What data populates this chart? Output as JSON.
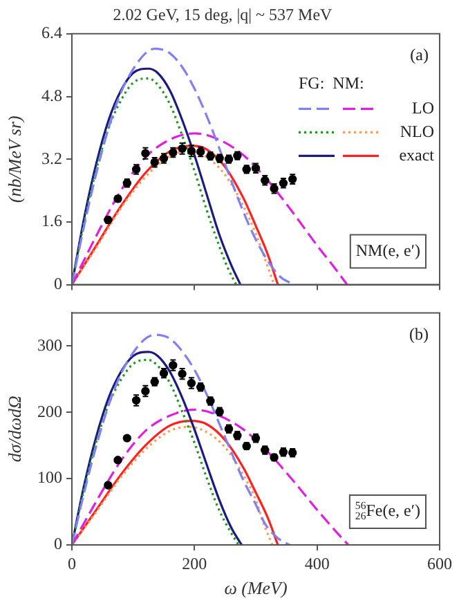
{
  "chart_data": [
    {
      "type": "line",
      "title": "2.02 GeV, 15 deg, |q| ~ 537 MeV",
      "ylabel": "(nb/MeV sr)",
      "legend_title": "FG:  NM:",
      "annotations": [
        "(a)",
        "NM(e, e′)"
      ],
      "xlim": [
        0,
        600
      ],
      "xticks": [
        0,
        200,
        400,
        600
      ],
      "ylim": [
        0,
        6.4
      ],
      "yticks": [
        0,
        1.6,
        3.2,
        4.8,
        6.4
      ],
      "tick_labels": "y",
      "grid": false,
      "legend": "right",
      "series": [
        {
          "color": "#8080f0",
          "line_style": "dashed",
          "x": [
            0,
            20,
            40,
            60,
            80,
            100,
            120,
            136,
            160,
            180,
            200,
            220,
            240,
            260,
            280,
            300,
            320,
            340,
            362
          ],
          "values": [
            0,
            1.5,
            2.85,
            4.0,
            4.9,
            5.5,
            5.9,
            6.02,
            5.9,
            5.55,
            5.0,
            4.3,
            3.5,
            2.65,
            1.85,
            1.15,
            0.6,
            0.2,
            0
          ]
        },
        {
          "color": "#1a9a1a",
          "line_style": "dotted",
          "x": [
            0,
            20,
            40,
            60,
            80,
            100,
            125,
            140,
            160,
            180,
            200,
            220,
            240,
            255,
            268
          ],
          "values": [
            0,
            1.6,
            2.95,
            4.0,
            4.7,
            5.15,
            5.26,
            5.1,
            4.6,
            3.8,
            2.9,
            1.9,
            1.0,
            0.4,
            0
          ]
        },
        {
          "color": "#1a1a80",
          "line_style": "solid",
          "x": [
            0,
            20,
            40,
            60,
            80,
            100,
            125,
            140,
            160,
            180,
            200,
            220,
            240,
            260,
            275
          ],
          "values": [
            0,
            1.7,
            3.1,
            4.2,
            4.95,
            5.4,
            5.51,
            5.4,
            4.95,
            4.2,
            3.3,
            2.3,
            1.3,
            0.5,
            0
          ]
        },
        {
          "name": "LO",
          "color": "#e020e0",
          "line_style": "dashed",
          "x": [
            0,
            40,
            80,
            120,
            160,
            200,
            240,
            280,
            320,
            360,
            400,
            430,
            449
          ],
          "values": [
            0,
            1.25,
            2.4,
            3.25,
            3.7,
            3.86,
            3.7,
            3.3,
            2.65,
            1.85,
            1.0,
            0.4,
            0
          ]
        },
        {
          "name": "NLO",
          "color": "#ff9a50",
          "line_style": "dotted",
          "x": [
            0,
            40,
            80,
            120,
            160,
            190,
            220,
            250,
            280,
            300,
            315,
            330
          ],
          "values": [
            0,
            0.95,
            1.95,
            2.75,
            3.28,
            3.4,
            3.25,
            2.8,
            2.0,
            1.3,
            0.65,
            0
          ]
        },
        {
          "name": "exact",
          "color": "#ff2020",
          "line_style": "solid",
          "x": [
            0,
            40,
            80,
            120,
            160,
            196,
            220,
            250,
            280,
            300,
            320,
            336
          ],
          "values": [
            0,
            1.0,
            2.0,
            2.85,
            3.4,
            3.54,
            3.45,
            3.0,
            2.2,
            1.5,
            0.75,
            0
          ]
        },
        {
          "type": "scatter",
          "marker": "circle",
          "color": "#000000",
          "x": [
            59,
            75,
            90,
            105,
            120,
            135,
            150,
            165,
            180,
            195,
            210,
            226,
            241,
            256,
            270,
            285,
            300,
            315,
            330,
            345,
            360
          ],
          "values": [
            1.65,
            2.19,
            2.59,
            2.94,
            3.35,
            3.12,
            3.22,
            3.37,
            3.47,
            3.41,
            3.39,
            3.28,
            3.22,
            3.2,
            3.29,
            2.94,
            2.97,
            2.66,
            2.45,
            2.59,
            2.69
          ],
          "errors": [
            0.08,
            0.08,
            0.1,
            0.12,
            0.14,
            0.12,
            0.12,
            0.12,
            0.14,
            0.14,
            0.12,
            0.1,
            0.1,
            0.1,
            0.1,
            0.1,
            0.12,
            0.12,
            0.12,
            0.12,
            0.12
          ]
        }
      ]
    },
    {
      "type": "line",
      "ylabel": "dσ/dωdΩ",
      "xlabel": "ω (MeV)",
      "annotations": [
        "(b)",
        "$^{56}$$_{26}$Fe(e, e′)"
      ],
      "xlim": [
        0,
        600
      ],
      "xticks": [
        0,
        200,
        400,
        600
      ],
      "ylim": [
        0,
        350
      ],
      "yticks": [
        0,
        100,
        200,
        300
      ],
      "grid": false,
      "series": [
        {
          "color": "#8080f0",
          "line_style": "dashed",
          "x": [
            0,
            20,
            40,
            60,
            80,
            100,
            120,
            136,
            160,
            180,
            200,
            220,
            240,
            260,
            280,
            300,
            315,
            335,
            355
          ],
          "values": [
            0,
            79,
            150,
            211,
            258,
            290,
            311,
            317,
            311,
            292,
            264,
            227,
            184,
            140,
            97,
            61,
            32,
            11,
            0
          ]
        },
        {
          "color": "#1a9a1a",
          "line_style": "dotted",
          "x": [
            0,
            20,
            40,
            60,
            80,
            100,
            125,
            140,
            160,
            180,
            200,
            220,
            240,
            258,
            272
          ],
          "values": [
            0,
            85,
            156,
            212,
            249,
            273,
            279,
            270,
            244,
            201,
            154,
            101,
            53,
            21,
            0
          ]
        },
        {
          "color": "#1a1a80",
          "line_style": "solid",
          "x": [
            0,
            20,
            40,
            60,
            80,
            100,
            125,
            140,
            160,
            180,
            200,
            220,
            240,
            260,
            277
          ],
          "values": [
            0,
            90,
            164,
            222,
            261,
            285,
            291,
            285,
            261,
            222,
            174,
            121,
            69,
            26,
            0
          ]
        },
        {
          "color": "#e020e0",
          "line_style": "dashed",
          "x": [
            0,
            40,
            80,
            120,
            160,
            200,
            240,
            280,
            320,
            360,
            400,
            430,
            451
          ],
          "values": [
            0,
            66,
            127,
            172,
            195,
            204,
            195,
            174,
            140,
            98,
            53,
            21,
            0
          ]
        },
        {
          "color": "#ff9a50",
          "line_style": "dotted",
          "x": [
            0,
            40,
            80,
            120,
            160,
            189,
            220,
            250,
            280,
            300,
            312,
            327
          ],
          "values": [
            0,
            50,
            102,
            144,
            172,
            178,
            170,
            147,
            105,
            68,
            34,
            0
          ]
        },
        {
          "color": "#ff2020",
          "line_style": "solid",
          "x": [
            0,
            40,
            80,
            120,
            160,
            195,
            220,
            250,
            280,
            300,
            320,
            336
          ],
          "values": [
            0,
            53,
            106,
            150,
            180,
            187,
            182,
            158,
            116,
            79,
            40,
            0
          ]
        },
        {
          "type": "scatter",
          "marker": "circle",
          "color": "#000000",
          "x": [
            59,
            75,
            90,
            105,
            120,
            135,
            150,
            165,
            180,
            195,
            210,
            226,
            241,
            256,
            270,
            285,
            300,
            315,
            330,
            345,
            360
          ],
          "values": [
            90,
            128,
            161,
            218,
            232,
            246,
            259,
            271,
            258,
            244,
            238,
            217,
            201,
            175,
            165,
            149,
            161,
            143,
            132,
            140,
            139
          ],
          "errors": [
            null,
            null,
            null,
            8,
            8,
            6,
            7,
            8,
            8,
            8,
            6,
            6,
            6,
            6,
            6,
            5,
            6,
            6,
            5,
            6,
            6
          ]
        }
      ]
    }
  ]
}
